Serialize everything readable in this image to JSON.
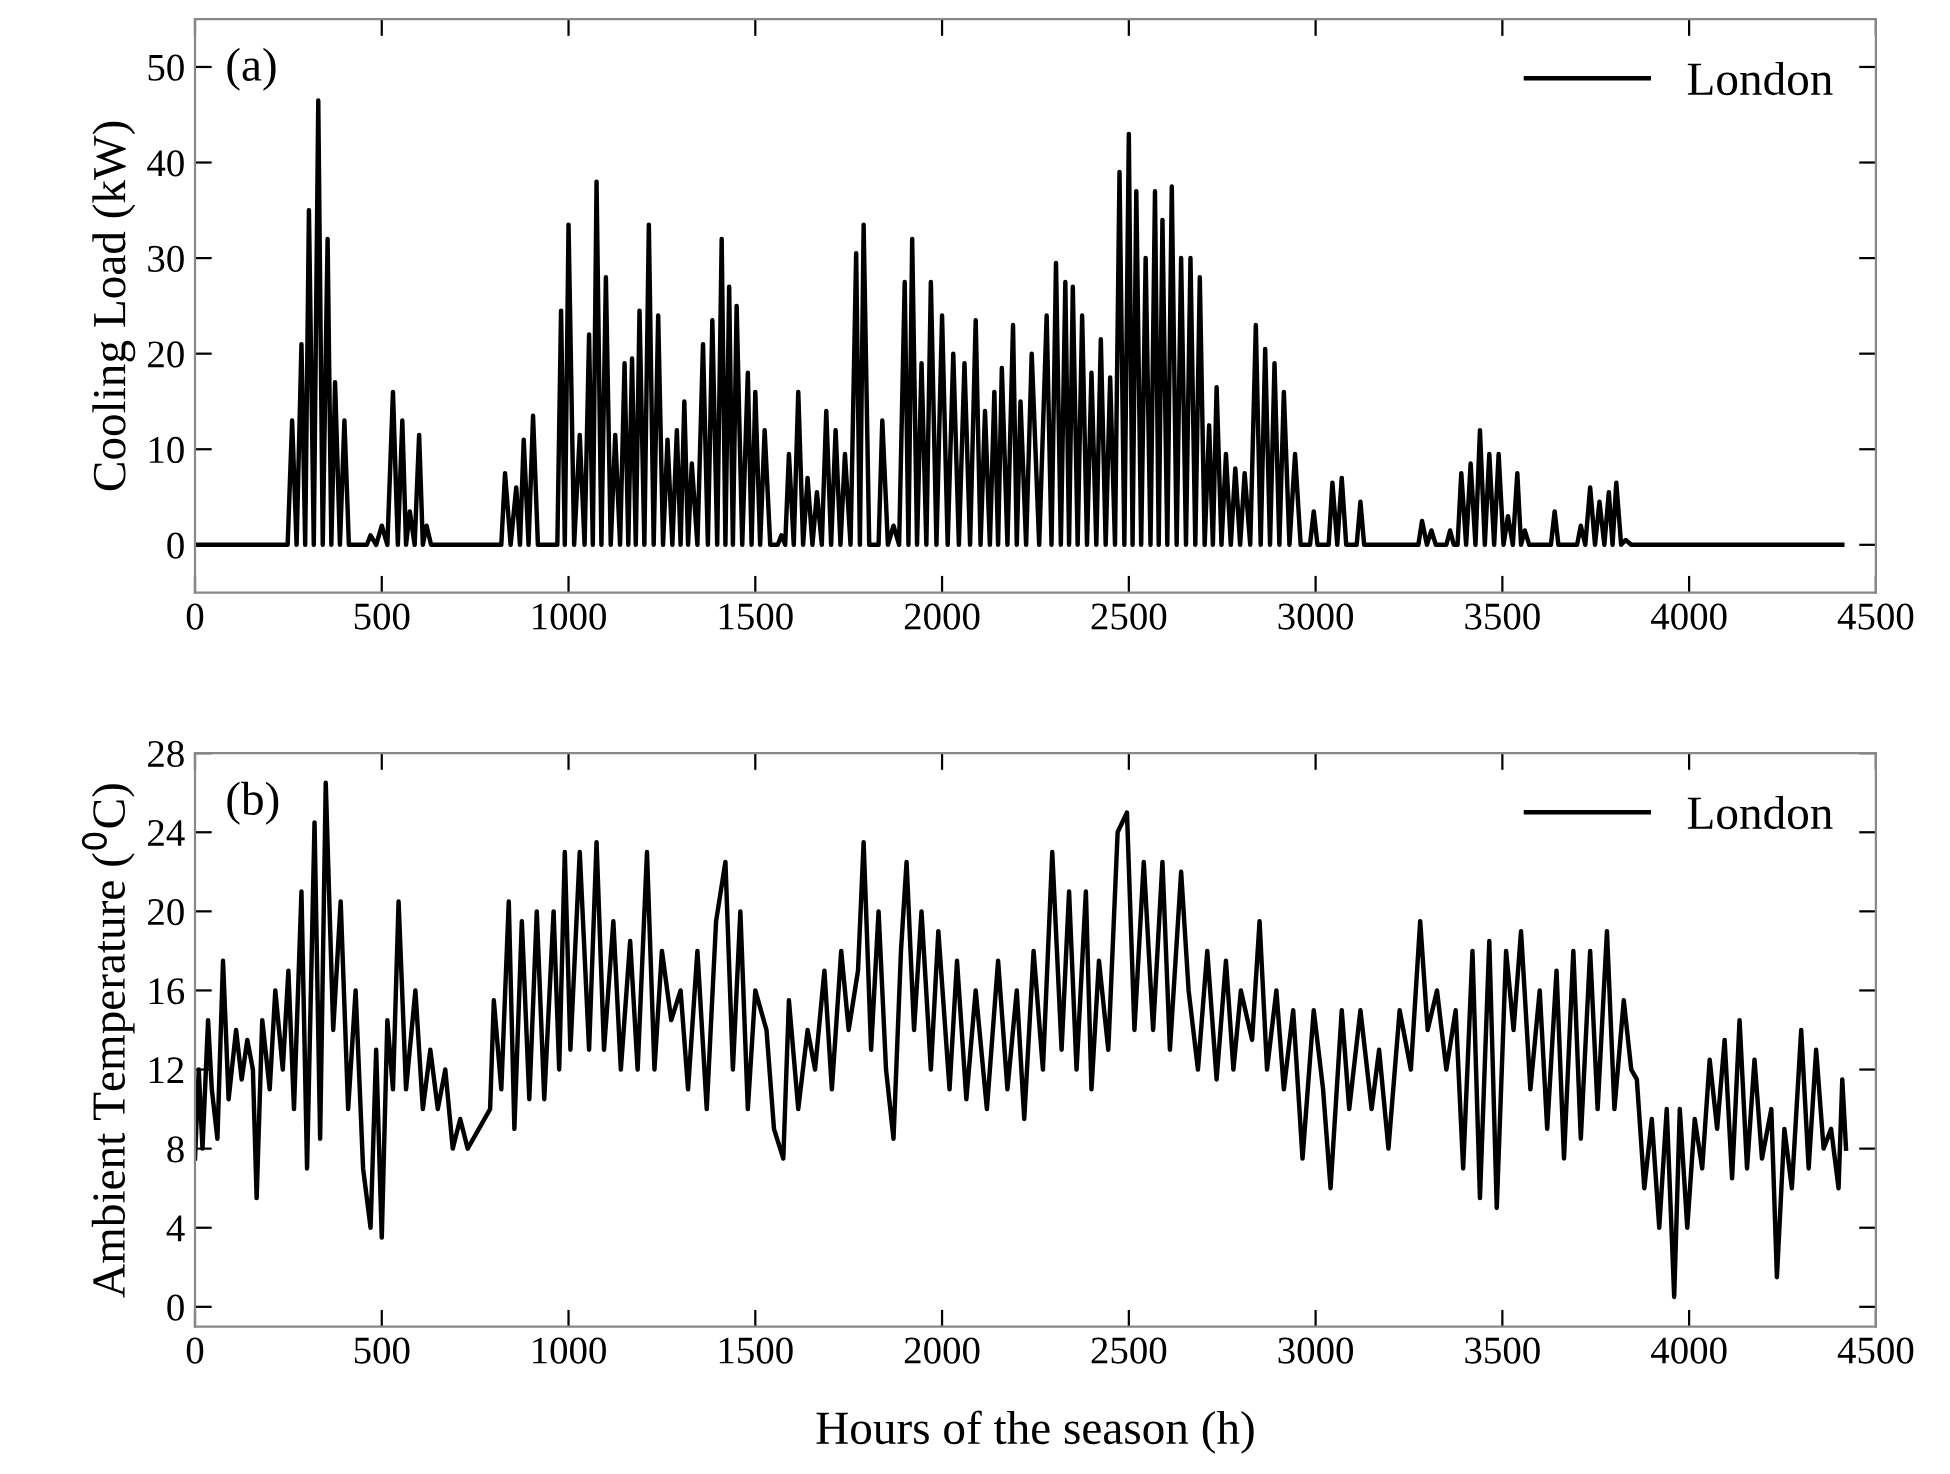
{
  "chart_data": [
    {
      "type": "line",
      "ylabel": "Cooling Load (kW)",
      "annotations": [
        "(a)"
      ],
      "xlim": [
        0,
        4500
      ],
      "xticks": [
        0,
        500,
        1000,
        1500,
        2000,
        2500,
        3000,
        3500,
        4000,
        4500
      ],
      "ylim": [
        -5,
        55
      ],
      "yticks": [
        0,
        10,
        20,
        30,
        40,
        50
      ],
      "legend": "top right",
      "grid": false,
      "marker": "none",
      "line_style": "solid",
      "series": [
        {
          "name": "London",
          "color": "#000000",
          "x": [
            0,
            248,
            260,
            272,
            285,
            295,
            305,
            318,
            330,
            342,
            355,
            365,
            375,
            388,
            400,
            412,
            460,
            470,
            485,
            500,
            515,
            530,
            543,
            555,
            565,
            575,
            588,
            600,
            610,
            620,
            632,
            820,
            830,
            845,
            860,
            870,
            880,
            893,
            905,
            918,
            970,
            980,
            990,
            1000,
            1015,
            1030,
            1043,
            1055,
            1065,
            1075,
            1088,
            1100,
            1113,
            1125,
            1138,
            1150,
            1160,
            1170,
            1180,
            1190,
            1203,
            1215,
            1228,
            1240,
            1253,
            1265,
            1278,
            1290,
            1300,
            1310,
            1320,
            1330,
            1345,
            1360,
            1373,
            1385,
            1398,
            1410,
            1420,
            1430,
            1440,
            1450,
            1465,
            1480,
            1490,
            1500,
            1513,
            1525,
            1540,
            1560,
            1570,
            1580,
            1590,
            1603,
            1615,
            1628,
            1640,
            1653,
            1665,
            1678,
            1690,
            1703,
            1715,
            1728,
            1740,
            1755,
            1770,
            1780,
            1790,
            1805,
            1830,
            1840,
            1855,
            1870,
            1885,
            1900,
            1910,
            1920,
            1933,
            1945,
            1958,
            1970,
            1985,
            2000,
            2015,
            2030,
            2045,
            2060,
            2075,
            2090,
            2103,
            2115,
            2128,
            2140,
            2150,
            2160,
            2175,
            2190,
            2200,
            2210,
            2225,
            2240,
            2260,
            2280,
            2293,
            2305,
            2318,
            2330,
            2340,
            2350,
            2363,
            2375,
            2388,
            2400,
            2413,
            2425,
            2438,
            2450,
            2463,
            2475,
            2488,
            2500,
            2510,
            2520,
            2533,
            2545,
            2558,
            2570,
            2580,
            2590,
            2603,
            2615,
            2628,
            2640,
            2653,
            2665,
            2678,
            2690,
            2703,
            2715,
            2725,
            2735,
            2748,
            2760,
            2773,
            2785,
            2798,
            2810,
            2825,
            2840,
            2853,
            2865,
            2878,
            2890,
            2903,
            2915,
            2930,
            2945,
            2960,
            2985,
            2995,
            3005,
            3035,
            3045,
            3058,
            3070,
            3082,
            3110,
            3120,
            3130,
            3275,
            3285,
            3298,
            3310,
            3322,
            3350,
            3360,
            3370,
            3380,
            3390,
            3403,
            3415,
            3428,
            3440,
            3453,
            3465,
            3478,
            3490,
            3503,
            3515,
            3528,
            3540,
            3550,
            3560,
            3572,
            3630,
            3640,
            3650,
            3700,
            3710,
            3722,
            3735,
            3748,
            3760,
            3773,
            3785,
            3795,
            3805,
            3818,
            3830,
            3845,
            4410
          ],
          "values": [
            0,
            0,
            13,
            0,
            21,
            0,
            35,
            0,
            46.5,
            0,
            32,
            0,
            17,
            0,
            13,
            0,
            0,
            1,
            0,
            2,
            0,
            16,
            0,
            13,
            0,
            3.5,
            0,
            11.5,
            0,
            2,
            0,
            0,
            7.5,
            0,
            6,
            0,
            11,
            0,
            13.5,
            0,
            0,
            24.5,
            0,
            33.5,
            0,
            11.5,
            0,
            22,
            0,
            38,
            0,
            28,
            0,
            11.5,
            0,
            19,
            0,
            19.5,
            0,
            24.5,
            0,
            33.5,
            0,
            24,
            0,
            11,
            0,
            12,
            0,
            15,
            0,
            8.5,
            0,
            21,
            0,
            23.5,
            0,
            32,
            0,
            27,
            0,
            25,
            0,
            18,
            0,
            16,
            0,
            12,
            0,
            0,
            1,
            0,
            9.5,
            0,
            16,
            0,
            7,
            0,
            5.5,
            0,
            14,
            0,
            12,
            0,
            9.5,
            0,
            30.5,
            0,
            33.5,
            0,
            0,
            13,
            0,
            2,
            0,
            27.5,
            0,
            32,
            0,
            19,
            0,
            27.5,
            0,
            24,
            0,
            20,
            0,
            19,
            0,
            23.5,
            0,
            14,
            0,
            16,
            0,
            18.5,
            0,
            23,
            0,
            15,
            0,
            20,
            0,
            24,
            0,
            29.5,
            0,
            27.5,
            0,
            27,
            0,
            24,
            0,
            18,
            0,
            21.5,
            0,
            17.5,
            0,
            39,
            0,
            43,
            0,
            37,
            0,
            30,
            0,
            37,
            0,
            34,
            0,
            37.5,
            0,
            30,
            0,
            30,
            0,
            28,
            0,
            12.5,
            0,
            16.5,
            0,
            9.5,
            0,
            8,
            0,
            7.5,
            0,
            23,
            0,
            20.5,
            0,
            19,
            0,
            16,
            0,
            9.5,
            0,
            0,
            3.5,
            0,
            0,
            6.5,
            0,
            7,
            0,
            0,
            4.5,
            0,
            0,
            2.5,
            0,
            1.5,
            0,
            0,
            1.5,
            0,
            0,
            7.5,
            0,
            8.5,
            0,
            12,
            0,
            9.5,
            0,
            9.5,
            0,
            3,
            0,
            7.5,
            0,
            1.5,
            0,
            0,
            3.5,
            0,
            0,
            2,
            0,
            6,
            0,
            4.5,
            0,
            5.5,
            0,
            6.5,
            0,
            0.5,
            0,
            0
          ]
        }
      ]
    },
    {
      "type": "line",
      "xlabel": "Hours of the season (h)",
      "ylabel": "Ambient Temperature ($^{0}$C)",
      "annotations": [
        "(b)"
      ],
      "xlim": [
        0,
        4500
      ],
      "xticks": [
        0,
        500,
        1000,
        1500,
        2000,
        2500,
        3000,
        3500,
        4000,
        4500
      ],
      "ylim": [
        -1,
        28
      ],
      "yticks": [
        0,
        4,
        8,
        12,
        16,
        20,
        24,
        28
      ],
      "legend": "top right",
      "grid": false,
      "marker": "none",
      "line_style": "solid",
      "series": [
        {
          "name": "London",
          "color": "#000000",
          "x": [
            0,
            10,
            20,
            35,
            45,
            60,
            75,
            90,
            110,
            125,
            140,
            155,
            165,
            180,
            200,
            215,
            235,
            250,
            265,
            285,
            300,
            320,
            335,
            350,
            370,
            390,
            410,
            430,
            450,
            470,
            485,
            500,
            515,
            530,
            545,
            565,
            590,
            610,
            630,
            650,
            670,
            690,
            710,
            730,
            760,
            790,
            800,
            820,
            840,
            855,
            875,
            895,
            915,
            935,
            960,
            975,
            990,
            1005,
            1030,
            1055,
            1075,
            1095,
            1120,
            1140,
            1165,
            1185,
            1210,
            1230,
            1250,
            1275,
            1300,
            1320,
            1345,
            1370,
            1395,
            1420,
            1440,
            1460,
            1480,
            1500,
            1530,
            1550,
            1575,
            1590,
            1615,
            1640,
            1660,
            1685,
            1705,
            1730,
            1750,
            1775,
            1790,
            1810,
            1830,
            1850,
            1870,
            1890,
            1905,
            1925,
            1945,
            1970,
            1990,
            2020,
            2040,
            2065,
            2090,
            2120,
            2150,
            2175,
            2200,
            2220,
            2245,
            2270,
            2295,
            2320,
            2340,
            2360,
            2385,
            2400,
            2420,
            2445,
            2470,
            2495,
            2515,
            2540,
            2565,
            2590,
            2610,
            2640,
            2660,
            2685,
            2710,
            2735,
            2760,
            2780,
            2800,
            2830,
            2850,
            2870,
            2895,
            2915,
            2940,
            2965,
            2995,
            3020,
            3040,
            3070,
            3090,
            3120,
            3150,
            3170,
            3195,
            3225,
            3255,
            3280,
            3300,
            3325,
            3350,
            3375,
            3395,
            3420,
            3440,
            3465,
            3485,
            3510,
            3530,
            3550,
            3575,
            3600,
            3620,
            3645,
            3665,
            3690,
            3710,
            3735,
            3755,
            3780,
            3800,
            3825,
            3845,
            3860,
            3880,
            3900,
            3920,
            3940,
            3960,
            3975,
            3995,
            4015,
            4035,
            4055,
            4075,
            4095,
            4115,
            4135,
            4155,
            4175,
            4195,
            4220,
            4235,
            4255,
            4275,
            4300,
            4320,
            4340,
            4360,
            4380,
            4400,
            4410,
            4420
          ],
          "values": [
            7.5,
            12,
            8,
            14.5,
            11,
            8.5,
            17.5,
            10.5,
            14,
            11.5,
            13.5,
            12,
            5.5,
            14.5,
            11,
            16,
            12,
            17,
            10,
            21,
            7,
            24.5,
            8.5,
            26.5,
            14,
            20.5,
            10,
            16,
            7,
            4,
            13,
            3.5,
            14.5,
            11,
            20.5,
            11,
            16,
            10,
            13,
            10,
            12,
            8,
            9.5,
            8,
            9,
            10,
            15.5,
            11,
            20.5,
            9,
            19.5,
            10.5,
            20,
            10.5,
            20,
            12,
            23,
            13,
            23,
            13,
            23.5,
            13,
            19.5,
            12,
            18.5,
            12,
            23,
            12,
            18,
            14.5,
            16,
            11,
            18,
            10,
            19.5,
            22.5,
            12,
            20,
            10,
            16,
            14,
            9,
            7.5,
            15.5,
            10,
            14,
            12,
            17,
            11,
            18,
            14,
            17,
            23.5,
            13,
            20,
            12,
            8.5,
            18,
            22.5,
            14,
            20,
            12,
            19,
            11,
            17.5,
            10.5,
            16,
            10,
            17.5,
            11,
            16,
            9.5,
            18,
            12,
            23,
            13,
            21,
            12,
            21,
            11,
            17.5,
            13,
            24,
            25,
            14,
            22.5,
            14,
            22.5,
            13,
            22,
            16,
            12,
            18,
            11.5,
            17.5,
            12,
            16,
            13.5,
            19.5,
            12,
            16,
            11,
            15,
            7.5,
            15,
            11,
            6,
            15,
            10,
            15,
            10,
            13,
            8,
            15,
            12,
            19.5,
            14,
            16,
            12,
            15,
            7,
            18,
            5.5,
            18.5,
            5,
            18,
            14,
            19,
            11,
            16,
            9,
            17,
            7.5,
            18,
            8.5,
            18,
            10,
            19,
            10,
            15.5,
            12,
            11.5,
            6,
            9.5,
            4,
            10,
            0.5,
            10,
            4,
            9.5,
            7,
            12.5,
            9,
            13.5,
            6.5,
            14.5,
            7,
            12.5,
            7.5,
            10,
            1.5,
            9,
            6,
            14,
            7,
            13,
            8,
            9,
            6,
            11.5,
            8
          ]
        }
      ]
    }
  ]
}
